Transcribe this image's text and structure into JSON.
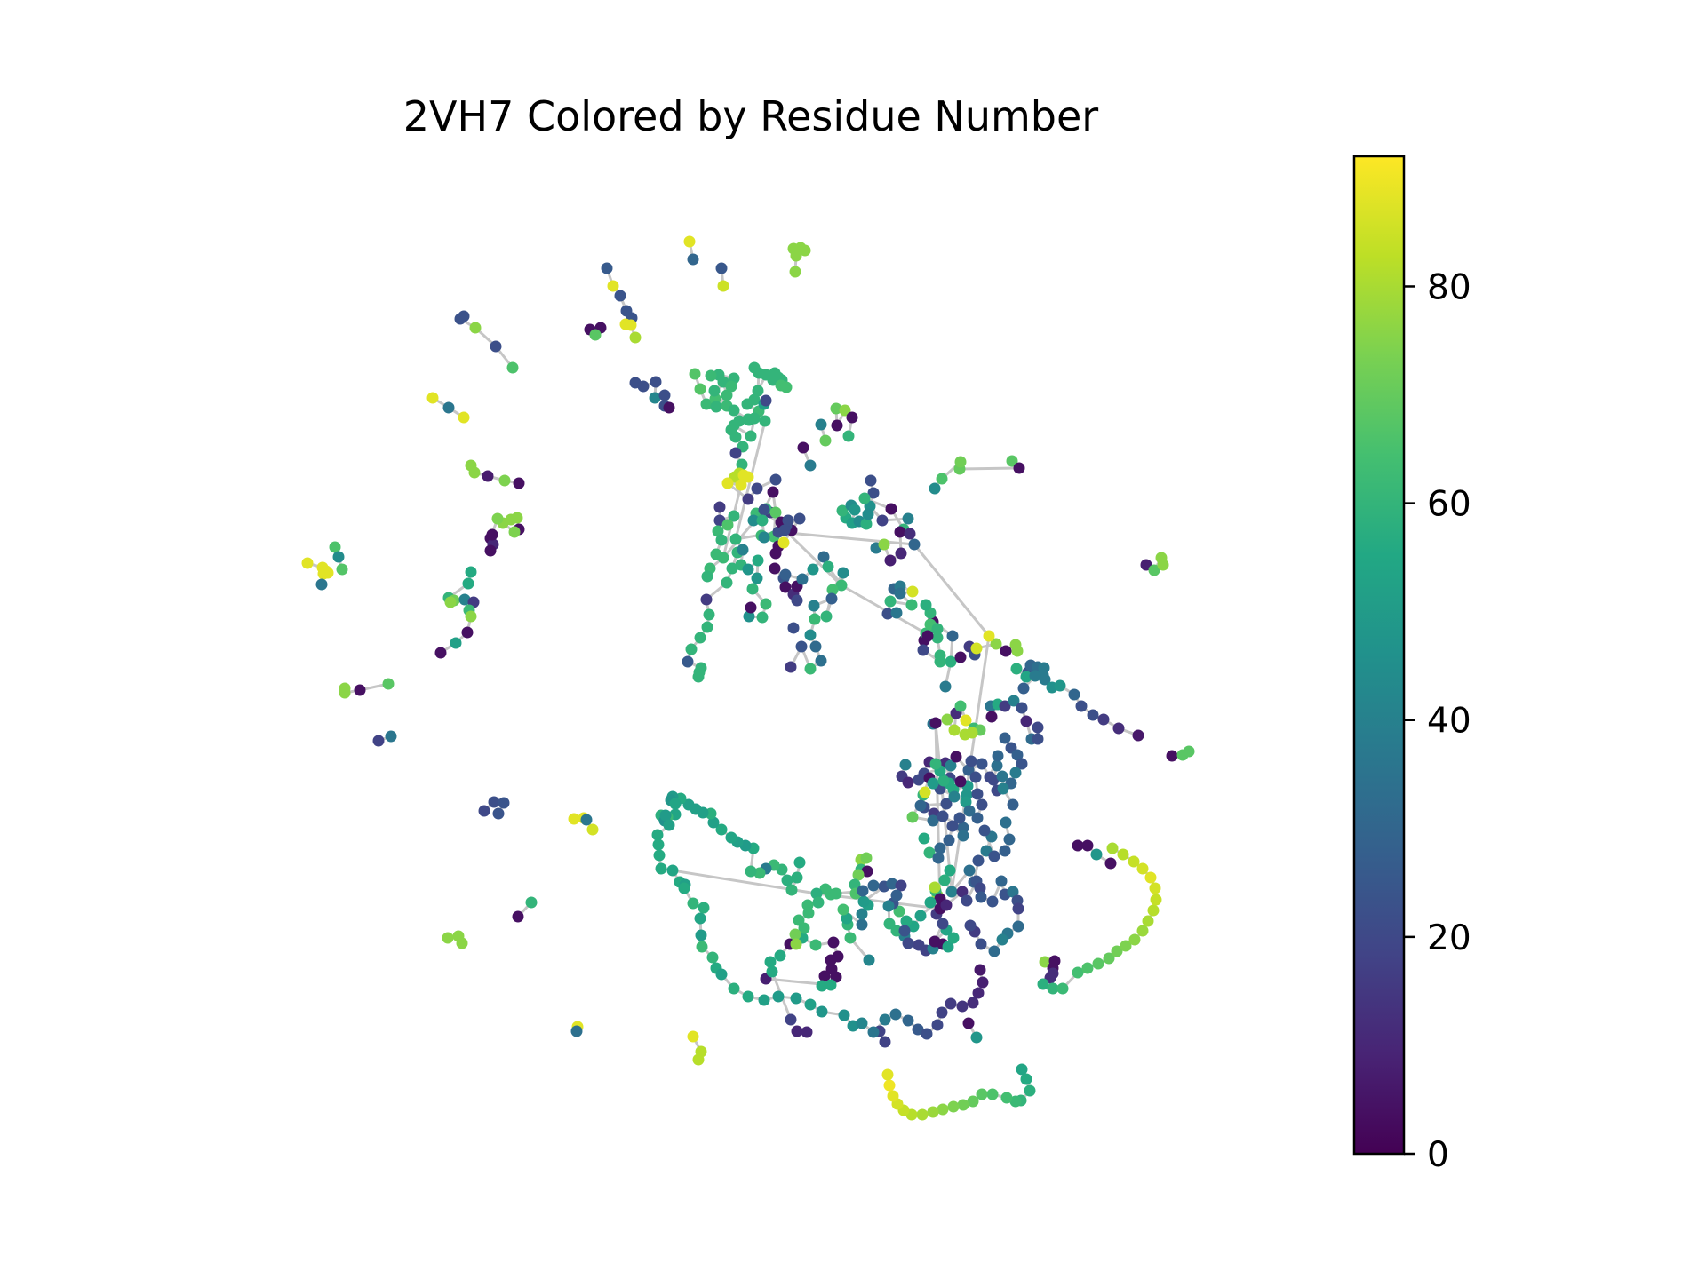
{
  "chart_data": {
    "type": "scatter",
    "title": "2VH7 Colored by Residue Number",
    "colormap": "viridis",
    "colorbar": {
      "range": [
        0,
        92
      ],
      "ticks": [
        0,
        20,
        40,
        60,
        80
      ],
      "tick_labels": [
        "0",
        "20",
        "40",
        "60",
        "80"
      ]
    },
    "edge_color": "#c6c6c6",
    "grid": false,
    "axes_visible": false
  }
}
